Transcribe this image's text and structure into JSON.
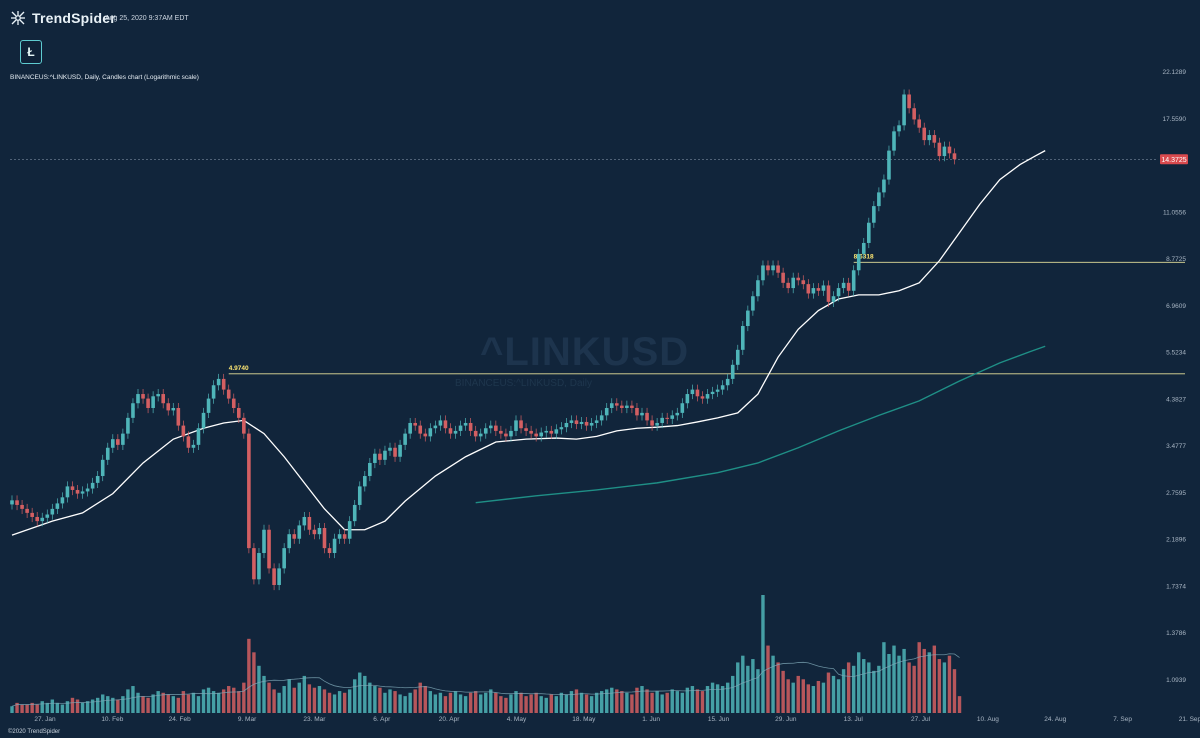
{
  "header": {
    "brand": "TrendSpider",
    "timestamp": "Aug 25, 2020 9:37AM EDT",
    "ticker_icon": "Ł",
    "symbol_line": "BINANCEUS:^LINKUSD, Daily, Candles chart (Logarithmic scale)",
    "watermark": "^LINKUSD",
    "watermark_sub": "BINANCEUS:^LINKUSD, Daily",
    "copyright": "©2020 TrendSpider"
  },
  "colors": {
    "background": "#11253b",
    "up": "#4fb5b9",
    "down": "#d35f62",
    "sma_fast": "#ffffff",
    "sma_slow": "#1f8f86",
    "level_line": "#e6e09a",
    "price_tag": "#d94a4e"
  },
  "chart_data": {
    "type": "candlestick",
    "title": "BINANCEUS:^LINKUSD, Daily, Candles chart (Logarithmic scale)",
    "scale": "log",
    "current_price_label": "14.3725",
    "current_price": 14.3725,
    "y_ticks": [
      "22.1289",
      "17.5590",
      "11.0556",
      "8.7725",
      "6.9609",
      "5.5234",
      "4.3827",
      "3.4777",
      "2.7595",
      "2.1896",
      "1.7374",
      "1.3786",
      "1.0939"
    ],
    "y_tick_values": [
      22.1289,
      17.559,
      11.0556,
      8.7725,
      6.9609,
      5.5234,
      4.3827,
      3.4777,
      2.7595,
      2.1896,
      1.7374,
      1.3786,
      1.0939
    ],
    "x_ticks": [
      "27. Jan",
      "10. Feb",
      "24. Feb",
      "9. Mar",
      "23. Mar",
      "6. Apr",
      "20. Apr",
      "4. May",
      "18. May",
      "1. Jun",
      "15. Jun",
      "29. Jun",
      "13. Jul",
      "27. Jul",
      "10. Aug",
      "24. Aug",
      "7. Sep",
      "21. Sep"
    ],
    "levels": [
      {
        "label": "4.9740",
        "value": 4.974
      },
      {
        "label": "8.6318",
        "value": 8.6318
      }
    ],
    "closes": [
      2.66,
      2.6,
      2.55,
      2.5,
      2.45,
      2.4,
      2.44,
      2.48,
      2.55,
      2.62,
      2.7,
      2.85,
      2.8,
      2.75,
      2.78,
      2.82,
      2.9,
      3.0,
      3.25,
      3.45,
      3.6,
      3.5,
      3.7,
      4.0,
      4.3,
      4.5,
      4.4,
      4.2,
      4.45,
      4.5,
      4.3,
      4.15,
      4.2,
      3.85,
      3.65,
      3.45,
      3.5,
      3.8,
      4.1,
      4.4,
      4.7,
      4.85,
      4.6,
      4.4,
      4.2,
      4.0,
      3.7,
      2.1,
      1.8,
      2.05,
      2.3,
      1.9,
      1.75,
      1.9,
      2.1,
      2.25,
      2.2,
      2.35,
      2.45,
      2.3,
      2.25,
      2.32,
      2.1,
      2.05,
      2.2,
      2.25,
      2.2,
      2.4,
      2.6,
      2.85,
      3.0,
      3.2,
      3.35,
      3.25,
      3.4,
      3.45,
      3.3,
      3.5,
      3.7,
      3.9,
      3.85,
      3.7,
      3.65,
      3.8,
      3.85,
      3.95,
      3.8,
      3.7,
      3.75,
      3.85,
      3.9,
      3.75,
      3.65,
      3.7,
      3.8,
      3.85,
      3.75,
      3.7,
      3.65,
      3.75,
      3.95,
      3.8,
      3.75,
      3.7,
      3.65,
      3.72,
      3.75,
      3.7,
      3.78,
      3.82,
      3.9,
      3.95,
      3.88,
      3.92,
      3.85,
      3.9,
      3.95,
      4.05,
      4.2,
      4.3,
      4.25,
      4.2,
      4.25,
      4.2,
      4.05,
      4.1,
      3.95,
      3.85,
      3.9,
      4.0,
      3.98,
      4.05,
      4.1,
      4.3,
      4.5,
      4.6,
      4.45,
      4.4,
      4.5,
      4.55,
      4.6,
      4.7,
      4.85,
      5.2,
      5.6,
      6.3,
      6.8,
      7.3,
      7.9,
      8.5,
      8.3,
      8.5,
      8.2,
      7.8,
      7.6,
      8.0,
      7.9,
      7.75,
      7.4,
      7.6,
      7.5,
      7.7,
      7.1,
      7.3,
      7.6,
      7.8,
      7.5,
      8.3,
      9.0,
      9.5,
      10.5,
      11.4,
      12.2,
      13.0,
      15.0,
      16.5,
      17.0,
      19.8,
      18.5,
      17.5,
      16.8,
      15.8,
      16.2,
      15.6,
      14.6,
      15.3,
      14.8,
      14.3725
    ],
    "sma_fast": [
      [
        0,
        2.24
      ],
      [
        8,
        2.4
      ],
      [
        14,
        2.5
      ],
      [
        20,
        2.75
      ],
      [
        26,
        3.2
      ],
      [
        32,
        3.6
      ],
      [
        38,
        3.8
      ],
      [
        42,
        3.9
      ],
      [
        46,
        3.95
      ],
      [
        50,
        3.7
      ],
      [
        54,
        3.3
      ],
      [
        58,
        2.9
      ],
      [
        62,
        2.55
      ],
      [
        66,
        2.3
      ],
      [
        70,
        2.3
      ],
      [
        74,
        2.4
      ],
      [
        78,
        2.65
      ],
      [
        84,
        3.0
      ],
      [
        90,
        3.3
      ],
      [
        96,
        3.55
      ],
      [
        102,
        3.6
      ],
      [
        108,
        3.62
      ],
      [
        112,
        3.6
      ],
      [
        116,
        3.65
      ],
      [
        120,
        3.75
      ],
      [
        124,
        3.8
      ],
      [
        128,
        3.82
      ],
      [
        132,
        3.85
      ],
      [
        136,
        3.92
      ],
      [
        140,
        4.0
      ],
      [
        144,
        4.1
      ],
      [
        148,
        4.5
      ],
      [
        152,
        5.4
      ],
      [
        156,
        6.2
      ],
      [
        160,
        6.8
      ],
      [
        164,
        7.2
      ],
      [
        168,
        7.35
      ],
      [
        172,
        7.35
      ],
      [
        176,
        7.5
      ],
      [
        180,
        7.8
      ],
      [
        184,
        8.7
      ],
      [
        188,
        10.0
      ],
      [
        192,
        11.5
      ],
      [
        196,
        13.0
      ],
      [
        200,
        14.0
      ],
      [
        203,
        14.6
      ],
      [
        205,
        15.0
      ]
    ],
    "sma_slow": [
      [
        92,
        2.63
      ],
      [
        104,
        2.72
      ],
      [
        116,
        2.8
      ],
      [
        128,
        2.9
      ],
      [
        140,
        3.05
      ],
      [
        148,
        3.2
      ],
      [
        156,
        3.45
      ],
      [
        164,
        3.75
      ],
      [
        172,
        4.05
      ],
      [
        180,
        4.35
      ],
      [
        188,
        4.8
      ],
      [
        196,
        5.25
      ],
      [
        202,
        5.55
      ],
      [
        205,
        5.7
      ]
    ],
    "volume": [
      4,
      6,
      5,
      5,
      6,
      5,
      7,
      6,
      8,
      6,
      5,
      7,
      9,
      8,
      6,
      7,
      8,
      9,
      11,
      10,
      9,
      8,
      10,
      14,
      16,
      12,
      10,
      9,
      11,
      13,
      12,
      11,
      10,
      9,
      13,
      11,
      12,
      10,
      14,
      15,
      13,
      12,
      14,
      16,
      15,
      13,
      18,
      44,
      36,
      28,
      22,
      18,
      14,
      12,
      16,
      20,
      15,
      18,
      22,
      17,
      15,
      16,
      14,
      12,
      11,
      13,
      12,
      14,
      20,
      24,
      22,
      18,
      16,
      15,
      12,
      14,
      13,
      11,
      10,
      12,
      14,
      18,
      16,
      13,
      11,
      12,
      10,
      12,
      13,
      11,
      10,
      12,
      13,
      11,
      12,
      14,
      12,
      10,
      9,
      11,
      13,
      12,
      10,
      11,
      12,
      10,
      9,
      11,
      10,
      12,
      11,
      13,
      14,
      12,
      11,
      10,
      12,
      13,
      14,
      15,
      14,
      13,
      12,
      11,
      15,
      16,
      14,
      12,
      13,
      11,
      12,
      14,
      13,
      12,
      15,
      16,
      14,
      13,
      16,
      18,
      17,
      16,
      18,
      22,
      30,
      34,
      28,
      32,
      26,
      70,
      40,
      34,
      30,
      25,
      20,
      18,
      22,
      20,
      17,
      16,
      19,
      18,
      24,
      22,
      20,
      26,
      30,
      28,
      36,
      32,
      30,
      25,
      28,
      42,
      35,
      40,
      34,
      38,
      30,
      28,
      42,
      38,
      36,
      40,
      32,
      30,
      34,
      26,
      10
    ]
  }
}
